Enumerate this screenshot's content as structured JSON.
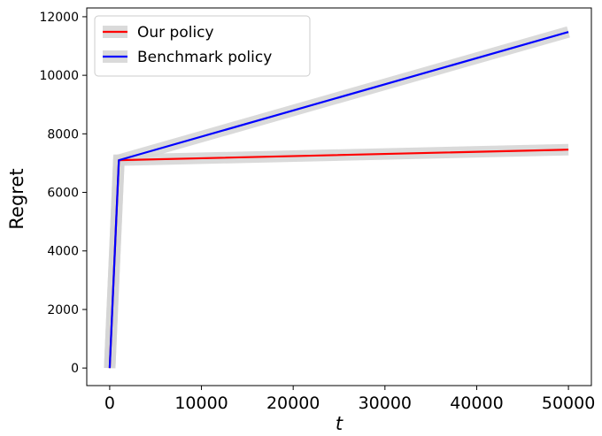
{
  "chart_data": {
    "type": "line",
    "xlabel": "t",
    "ylabel": "Regret",
    "xlim": [
      -2500,
      52500
    ],
    "ylim": [
      -600,
      12300
    ],
    "xticks": [
      0,
      10000,
      20000,
      30000,
      40000,
      50000
    ],
    "yticks": [
      0,
      2000,
      4000,
      6000,
      8000,
      10000,
      12000
    ],
    "grid": false,
    "legend_position": "top-left",
    "series": [
      {
        "name": "Our policy",
        "color": "#ff0000",
        "x": [
          0,
          1000,
          50000
        ],
        "y": [
          0,
          7100,
          7460
        ]
      },
      {
        "name": "Benchmark policy",
        "color": "#0000ff",
        "x": [
          0,
          1000,
          50000
        ],
        "y": [
          0,
          7100,
          11480
        ]
      }
    ],
    "band_color": "#d3d3d3"
  }
}
